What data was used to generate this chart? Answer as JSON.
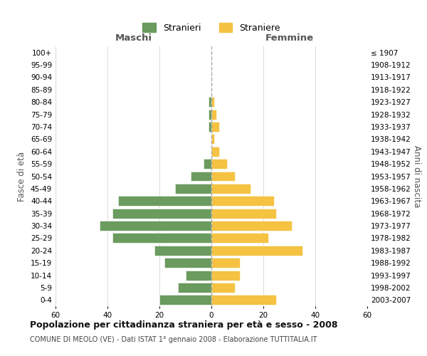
{
  "age_groups": [
    "0-4",
    "5-9",
    "10-14",
    "15-19",
    "20-24",
    "25-29",
    "30-34",
    "35-39",
    "40-44",
    "45-49",
    "50-54",
    "55-59",
    "60-64",
    "65-69",
    "70-74",
    "75-79",
    "80-84",
    "85-89",
    "90-94",
    "95-99",
    "100+"
  ],
  "birth_years": [
    "2003-2007",
    "1998-2002",
    "1993-1997",
    "1988-1992",
    "1983-1987",
    "1978-1982",
    "1973-1977",
    "1968-1972",
    "1963-1967",
    "1958-1962",
    "1953-1957",
    "1948-1952",
    "1943-1947",
    "1938-1942",
    "1933-1937",
    "1928-1932",
    "1923-1927",
    "1918-1922",
    "1913-1917",
    "1908-1912",
    "≤ 1907"
  ],
  "maschi": [
    20,
    13,
    10,
    18,
    22,
    38,
    43,
    38,
    36,
    14,
    8,
    3,
    0,
    0,
    1,
    1,
    1,
    0,
    0,
    0,
    0
  ],
  "femmine": [
    25,
    9,
    11,
    11,
    35,
    22,
    31,
    25,
    24,
    15,
    9,
    6,
    3,
    1,
    3,
    2,
    1,
    0,
    0,
    0,
    0
  ],
  "color_maschi": "#6b9b5e",
  "color_femmine": "#f5c242",
  "title": "Popolazione per cittadinanza straniera per età e sesso - 2008",
  "subtitle": "COMUNE DI MEOLO (VE) - Dati ISTAT 1° gennaio 2008 - Elaborazione TUTTITALIA.IT",
  "header_left": "Maschi",
  "header_right": "Femmine",
  "ylabel_left": "Fasce di età",
  "ylabel_right": "Anni di nascita",
  "legend_maschi": "Stranieri",
  "legend_femmine": "Straniere",
  "xlim": 60,
  "background_color": "#ffffff",
  "grid_color": "#cccccc"
}
